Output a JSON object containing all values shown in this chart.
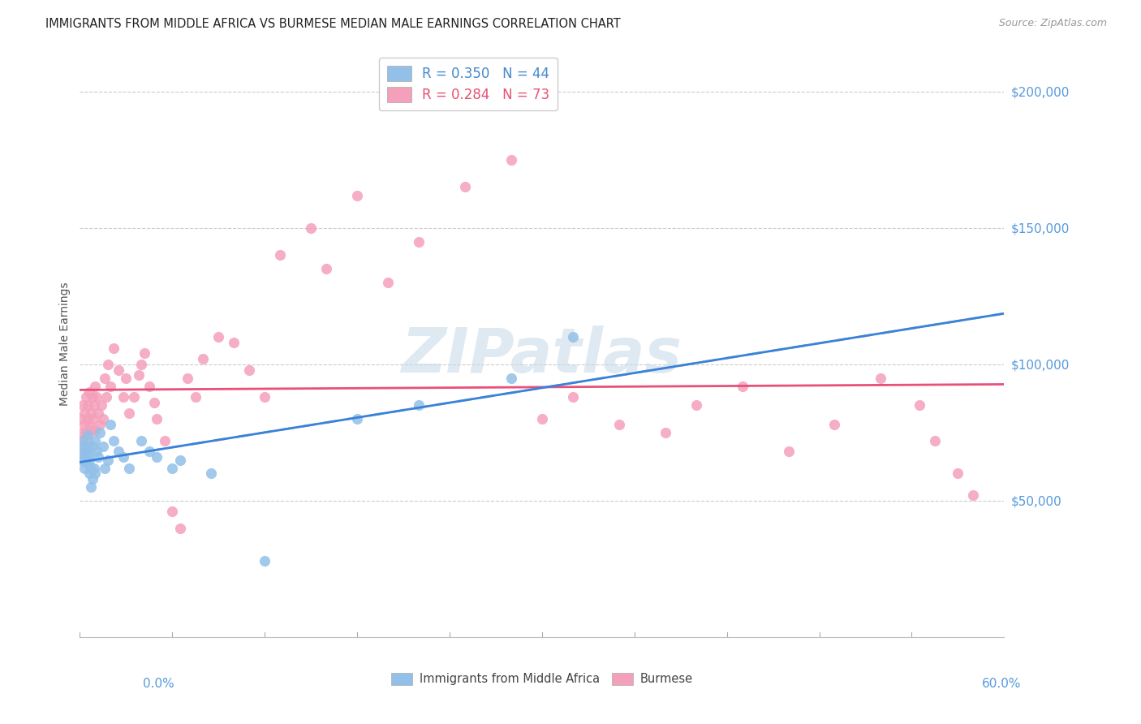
{
  "title": "IMMIGRANTS FROM MIDDLE AFRICA VS BURMESE MEDIAN MALE EARNINGS CORRELATION CHART",
  "source": "Source: ZipAtlas.com",
  "ylabel": "Median Male Earnings",
  "xmin": 0.0,
  "xmax": 0.6,
  "ymin": 0,
  "ymax": 215000,
  "blue_color": "#92c0e8",
  "pink_color": "#f4a0bb",
  "blue_line_color": "#3a82d9",
  "pink_line_color": "#e8507a",
  "dashed_line_color": "#99bbcc",
  "watermark": "ZIPatlas",
  "blue_scatter_x": [
    0.001,
    0.002,
    0.002,
    0.003,
    0.003,
    0.003,
    0.004,
    0.004,
    0.004,
    0.005,
    0.005,
    0.005,
    0.006,
    0.006,
    0.006,
    0.007,
    0.007,
    0.008,
    0.008,
    0.009,
    0.01,
    0.01,
    0.011,
    0.012,
    0.013,
    0.015,
    0.016,
    0.018,
    0.02,
    0.022,
    0.025,
    0.028,
    0.032,
    0.04,
    0.045,
    0.05,
    0.06,
    0.065,
    0.085,
    0.12,
    0.18,
    0.22,
    0.28,
    0.32
  ],
  "blue_scatter_y": [
    65000,
    68000,
    72000,
    62000,
    66000,
    70000,
    64000,
    68000,
    65000,
    70000,
    66000,
    74000,
    60000,
    68000,
    65000,
    62000,
    55000,
    70000,
    58000,
    62000,
    72000,
    60000,
    68000,
    66000,
    75000,
    70000,
    62000,
    65000,
    78000,
    72000,
    68000,
    66000,
    62000,
    72000,
    68000,
    66000,
    62000,
    65000,
    60000,
    28000,
    80000,
    85000,
    95000,
    110000
  ],
  "pink_scatter_x": [
    0.001,
    0.001,
    0.002,
    0.002,
    0.003,
    0.003,
    0.003,
    0.004,
    0.004,
    0.005,
    0.005,
    0.005,
    0.006,
    0.006,
    0.007,
    0.007,
    0.008,
    0.008,
    0.009,
    0.01,
    0.01,
    0.011,
    0.012,
    0.013,
    0.014,
    0.015,
    0.016,
    0.017,
    0.018,
    0.02,
    0.022,
    0.025,
    0.028,
    0.03,
    0.032,
    0.035,
    0.038,
    0.04,
    0.042,
    0.045,
    0.048,
    0.05,
    0.055,
    0.06,
    0.065,
    0.07,
    0.075,
    0.08,
    0.09,
    0.1,
    0.11,
    0.12,
    0.13,
    0.15,
    0.16,
    0.18,
    0.2,
    0.22,
    0.25,
    0.28,
    0.3,
    0.32,
    0.35,
    0.38,
    0.4,
    0.43,
    0.46,
    0.49,
    0.52,
    0.545,
    0.555,
    0.57,
    0.58
  ],
  "pink_scatter_y": [
    75000,
    80000,
    72000,
    85000,
    68000,
    78000,
    82000,
    75000,
    88000,
    72000,
    80000,
    85000,
    78000,
    90000,
    76000,
    82000,
    88000,
    80000,
    85000,
    76000,
    92000,
    88000,
    82000,
    78000,
    85000,
    80000,
    95000,
    88000,
    100000,
    92000,
    106000,
    98000,
    88000,
    95000,
    82000,
    88000,
    96000,
    100000,
    104000,
    92000,
    86000,
    80000,
    72000,
    46000,
    40000,
    95000,
    88000,
    102000,
    110000,
    108000,
    98000,
    88000,
    140000,
    150000,
    135000,
    162000,
    130000,
    145000,
    165000,
    175000,
    80000,
    88000,
    78000,
    75000,
    85000,
    92000,
    68000,
    78000,
    95000,
    85000,
    72000,
    60000,
    52000
  ]
}
